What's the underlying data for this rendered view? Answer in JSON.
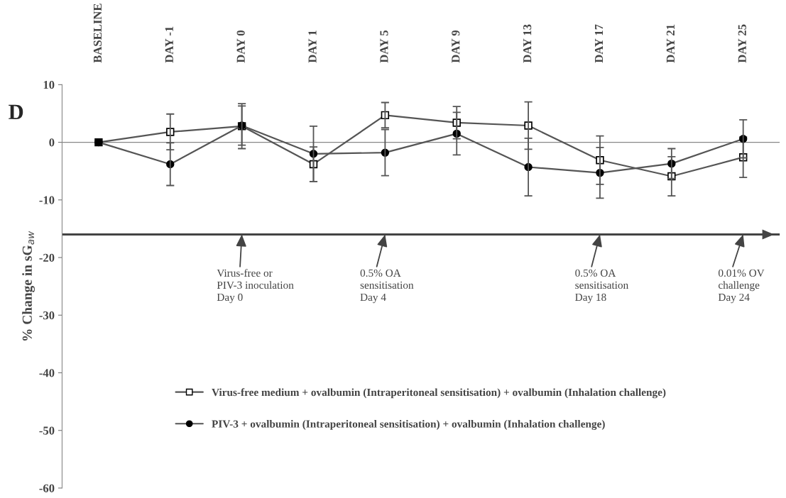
{
  "chart_data": {
    "type": "line",
    "title": "D",
    "categories": [
      "BASELINE",
      "DAY -1",
      "DAY 0",
      "DAY 1",
      "DAY 5",
      "DAY 9",
      "DAY 13",
      "DAY 17",
      "DAY 21",
      "DAY 25"
    ],
    "ylabel": "% Change in sG$_{aw}$",
    "ylim": [
      -60,
      10
    ],
    "yticks": [
      10,
      0,
      -10,
      -20,
      -30,
      -40,
      -50,
      -60
    ],
    "series": [
      {
        "name": "Virus-free medium + ovalbumin (Intraperitoneal sensitisation) + ovalbumin (Inhalation challenge)",
        "color": "#555555",
        "marker": "square",
        "values": [
          0,
          1.8,
          2.8,
          -3.8,
          4.7,
          3.4,
          2.9,
          -3.1,
          -5.9,
          -2.6
        ],
        "errors": [
          null,
          3.1,
          3.9,
          3.0,
          2.2,
          2.8,
          4.1,
          4.2,
          3.4,
          3.5
        ]
      },
      {
        "name": "PIV-3 + ovalbumin (Intraperitoneal sensitisation) + ovalbumin (Inhalation challenge)",
        "color": "#555555",
        "marker": "circle",
        "values": [
          0,
          -3.8,
          2.9,
          -2.0,
          -1.8,
          1.5,
          -4.3,
          -5.3,
          -3.7,
          0.6
        ],
        "errors": [
          null,
          3.7,
          3.4,
          4.8,
          4.0,
          3.7,
          5.0,
          4.4,
          2.6,
          3.3
        ]
      }
    ],
    "annotations": [
      {
        "text": "Virus-free or\nPIV-3 inoculation\nDay 0",
        "x": "DAY 0",
        "y": -16
      },
      {
        "text": "0.5% OA\nsensitisation\nDay 4",
        "x": "DAY 5",
        "y": -16
      },
      {
        "text": "0.5% OA\nsensitisation\nDay 18",
        "x": "DAY 17",
        "y": -16
      },
      {
        "text": "0.01% OV\nchallenge\nDay 24",
        "x": "DAY 25",
        "y": -16
      }
    ],
    "ref_lines": [
      {
        "axis": "y",
        "value": 0,
        "color": "#888888"
      },
      {
        "axis": "y",
        "value": -16,
        "color": "#444444"
      }
    ],
    "legend": "bottom",
    "grid": false
  }
}
